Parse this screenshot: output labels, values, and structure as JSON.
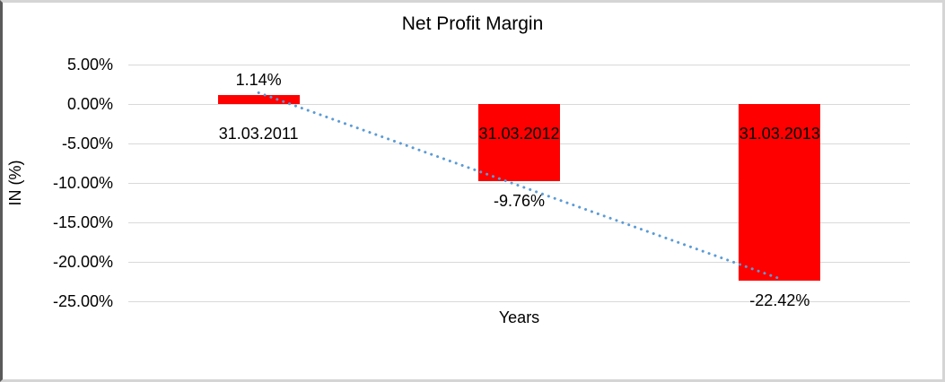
{
  "chart_data": {
    "type": "bar",
    "title": "Net Profit Margin",
    "xlabel": "Years",
    "ylabel": "IN (%)",
    "categories": [
      "31.03.2011",
      "31.03.2012",
      "31.03.2013"
    ],
    "values": [
      1.14,
      -9.76,
      -22.42
    ],
    "value_labels": [
      "1.14%",
      "-9.76%",
      "-22.42%"
    ],
    "y_ticks": [
      "5.00%",
      "0.00%",
      "-5.00%",
      "-10.00%",
      "-15.00%",
      "-20.00%",
      "-25.00%"
    ],
    "y_tick_values": [
      5,
      0,
      -5,
      -10,
      -15,
      -20,
      -25
    ],
    "ylim": [
      -25,
      5
    ],
    "grid": "horizontal",
    "legend": "none",
    "bar_color": "#ff0000",
    "trendline": {
      "style": "dotted",
      "color": "#5b9bd5",
      "from_value": 1.43,
      "to_value": -22.13
    }
  }
}
